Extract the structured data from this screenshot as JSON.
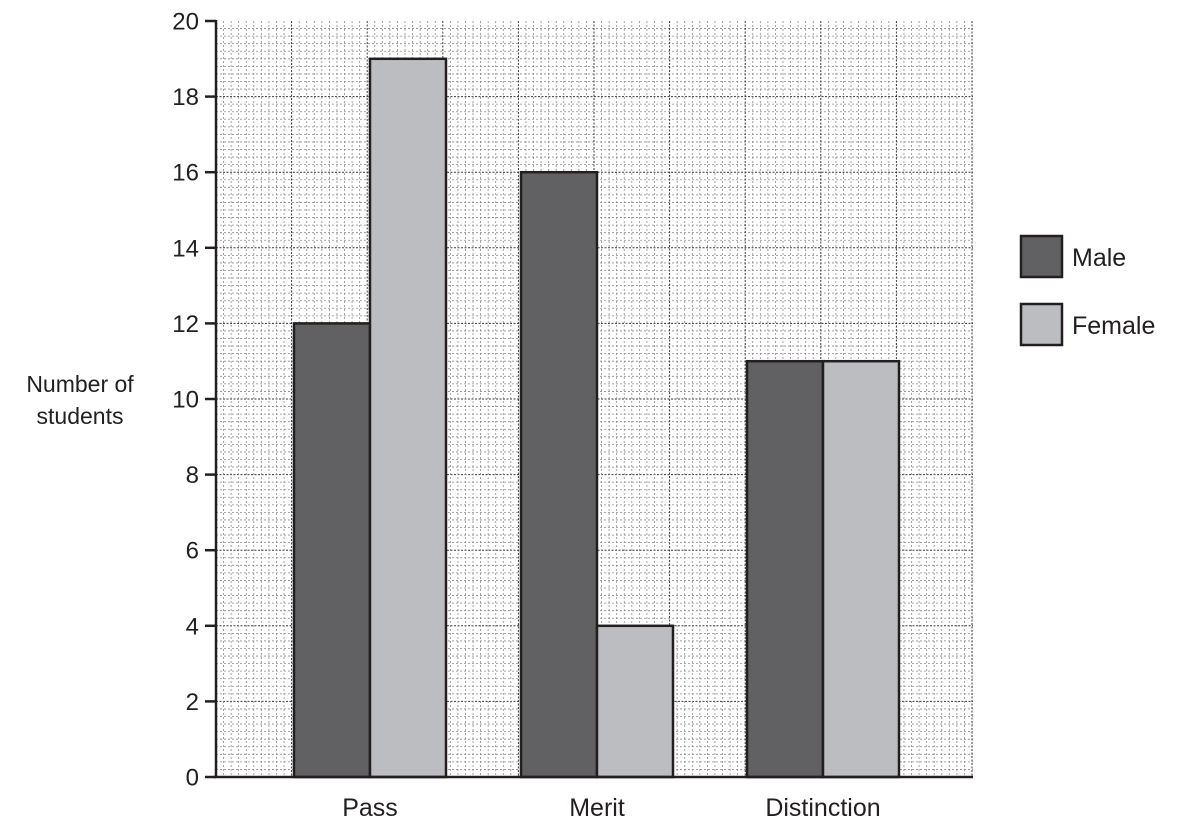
{
  "chart_data": {
    "type": "bar",
    "categories": [
      "Pass",
      "Merit",
      "Distinction"
    ],
    "series": [
      {
        "name": "Male",
        "values": [
          12,
          16,
          11
        ],
        "color": "#616062"
      },
      {
        "name": "Female",
        "values": [
          19,
          4,
          11
        ],
        "color": "#bcbdc0"
      }
    ],
    "ylabel": [
      "Number of",
      "students"
    ],
    "xlabel": "",
    "ylim": [
      0,
      20
    ],
    "yticks": [
      0,
      2,
      4,
      6,
      8,
      10,
      12,
      14,
      16,
      18,
      20
    ],
    "grid": true,
    "legend_position": "right",
    "colors": {
      "axis": "#231f20",
      "grid_minor": "#8c8c8c",
      "grid_major": "#3a3a3a",
      "bar_edge": "#231f20"
    }
  }
}
